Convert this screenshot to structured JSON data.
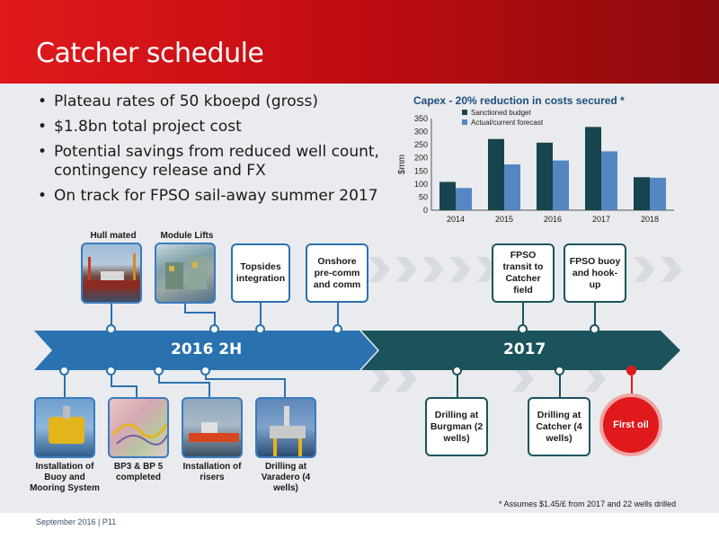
{
  "title": "Catcher schedule",
  "bullets": [
    "Plateau rates of 50 kboepd (gross)",
    "$1.8bn total project cost",
    "Potential savings from reduced well count, contingency release and FX",
    "On track for FPSO sail-away summer 2017"
  ],
  "chart_data": {
    "type": "bar",
    "title": "Capex - 20% reduction in costs secured *",
    "ylabel": "$mm",
    "xlabel": "",
    "categories": [
      "2014",
      "2015",
      "2016",
      "2017",
      "2018"
    ],
    "ylim": [
      0,
      350
    ],
    "yticks": [
      "0",
      "50",
      "100",
      "150",
      "200",
      "250",
      "300",
      "350"
    ],
    "grid": false,
    "legend_position": "top-left",
    "series": [
      {
        "name": "Sanctioned budget",
        "values": [
          108,
          272,
          258,
          318,
          126
        ],
        "color": "#17444e"
      },
      {
        "name": "Actual/current forecast",
        "values": [
          85,
          175,
          190,
          225,
          124
        ],
        "color": "#5487c2"
      }
    ]
  },
  "timeline": {
    "period_2016": "2016 2H",
    "period_2017": "2017",
    "top_items": {
      "hull_mated": "Hull mated",
      "module_lifts": "Module Lifts",
      "topsides": "Topsides integration",
      "onshore": "Onshore pre-comm and comm",
      "fpso_transit": "FPSO transit to Catcher field",
      "fpso_buoy": "FPSO buoy and hook-up"
    },
    "bottom_items": {
      "buoy": "Installation of Buoy and Mooring System",
      "bp": "BP3 & BP 5 completed",
      "risers": "Installation of risers",
      "varadero": "Drilling at Varadero (4 wells)",
      "burgman": "Drilling at Burgman (2 wells)",
      "catcher": "Drilling at Catcher (4 wells)",
      "first_oil": "First oil"
    }
  },
  "note": "* Assumes $1.45/£ from 2017 and 22 wells drilled",
  "footer": "September 2016 | P11",
  "colors": {
    "brand_red": "#e0191c",
    "arrow_blue": "#2a71b0",
    "arrow_teal": "#1b535c"
  }
}
